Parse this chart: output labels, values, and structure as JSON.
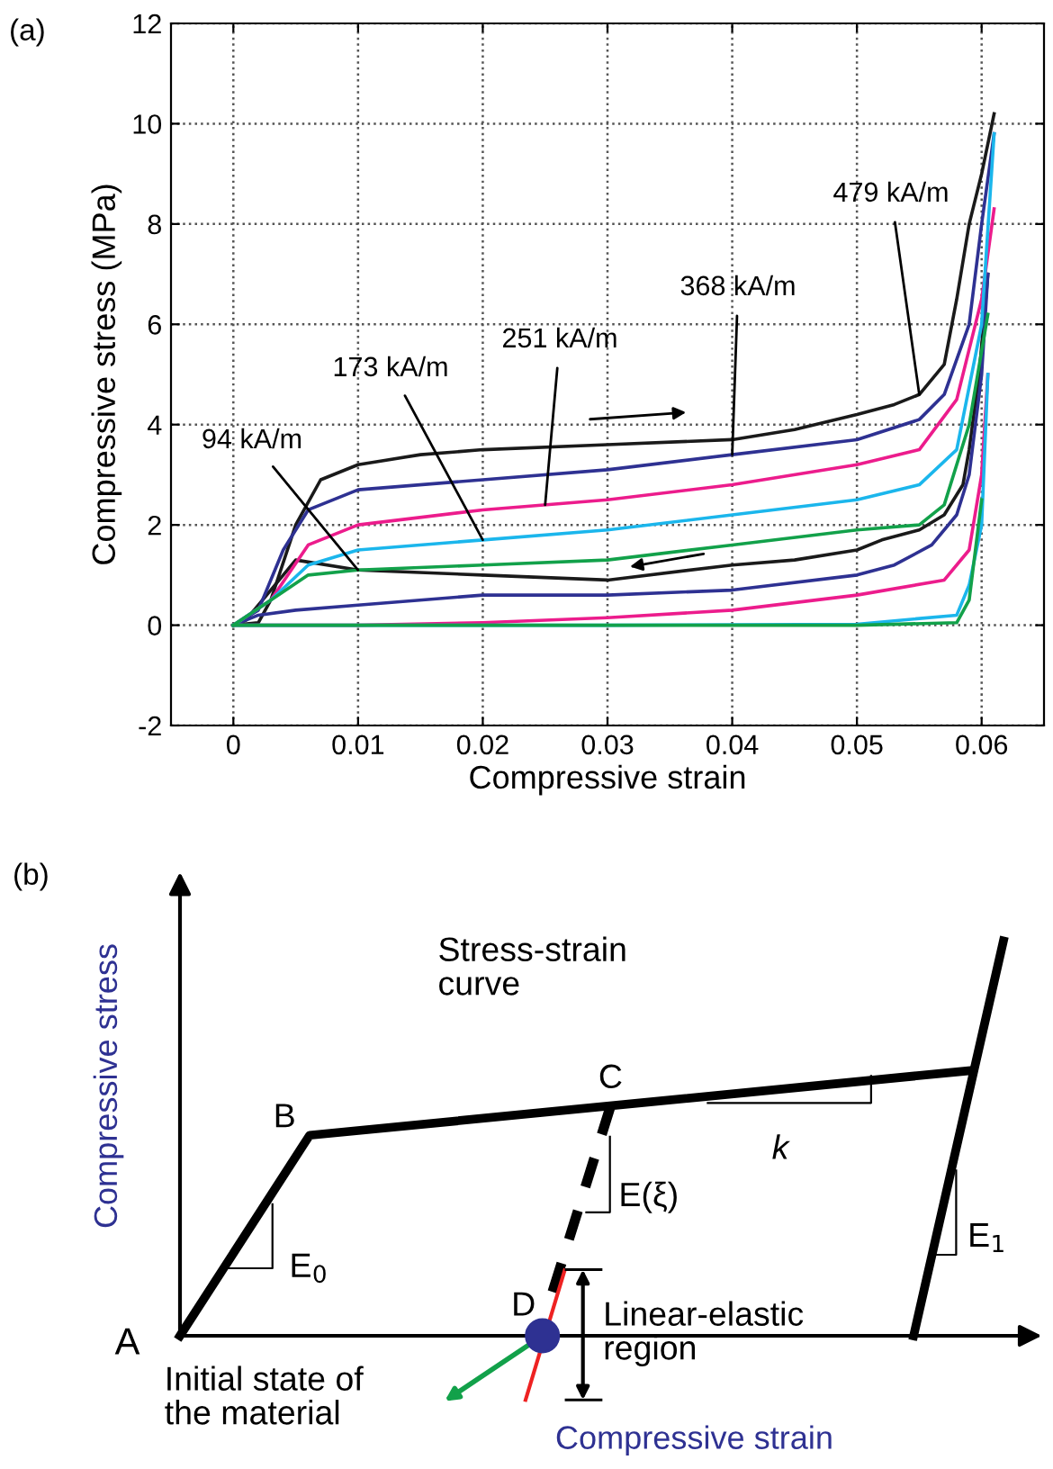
{
  "chart_data": [
    {
      "type": "line",
      "xlabel": "Compressive strain",
      "ylabel": "Compressive stress (MPa)",
      "xlim": [
        -0.005,
        0.065
      ],
      "ylim": [
        -2,
        12
      ],
      "xticks": [
        0,
        0.01,
        0.02,
        0.03,
        0.04,
        0.05,
        0.06
      ],
      "yticks": [
        -2,
        0,
        2,
        4,
        6,
        8,
        10,
        12
      ],
      "grid": true,
      "legend": false,
      "marker": "none",
      "line_style": "solid",
      "series": [
        {
          "color": "#1a1a1a",
          "x": [
            0,
            0.002,
            0.003,
            0.005,
            0.007,
            0.01,
            0.015,
            0.02,
            0.03,
            0.04,
            0.045,
            0.05,
            0.053,
            0.055,
            0.057,
            0.058,
            0.059,
            0.06,
            0.061
          ],
          "values": [
            0,
            0.05,
            0.5,
            2.0,
            2.9,
            3.2,
            3.4,
            3.5,
            3.6,
            3.7,
            3.9,
            4.2,
            4.4,
            4.6,
            5.2,
            6.5,
            8.0,
            9.0,
            10.2
          ]
        },
        {
          "color": "#1a1a1a",
          "x": [
            0,
            0.001,
            0.003,
            0.005,
            0.01,
            0.02,
            0.03,
            0.04,
            0.045,
            0.05,
            0.052,
            0.055,
            0.057,
            0.0585,
            0.059,
            0.0598,
            0.0605
          ],
          "values": [
            0,
            0.1,
            0.7,
            1.3,
            1.1,
            1.0,
            0.9,
            1.2,
            1.3,
            1.5,
            1.7,
            1.9,
            2.2,
            2.8,
            3.5,
            5,
            7
          ]
        },
        {
          "color": "#2e3192",
          "x": [
            0,
            0.002,
            0.004,
            0.006,
            0.01,
            0.02,
            0.03,
            0.04,
            0.05,
            0.055,
            0.057,
            0.059,
            0.06,
            0.061
          ],
          "values": [
            0,
            0.3,
            1.5,
            2.3,
            2.7,
            2.9,
            3.1,
            3.4,
            3.7,
            4.1,
            4.6,
            6,
            8,
            9.8
          ]
        },
        {
          "color": "#2e3192",
          "x": [
            0,
            0.002,
            0.005,
            0.01,
            0.02,
            0.03,
            0.04,
            0.05,
            0.053,
            0.056,
            0.058,
            0.059,
            0.06,
            0.0605
          ],
          "values": [
            0,
            0.2,
            0.3,
            0.4,
            0.6,
            0.6,
            0.7,
            1.0,
            1.2,
            1.6,
            2.2,
            3,
            5,
            7
          ]
        },
        {
          "color": "#ec1c8c",
          "x": [
            0,
            0.003,
            0.006,
            0.01,
            0.02,
            0.03,
            0.04,
            0.05,
            0.055,
            0.058,
            0.06,
            0.061
          ],
          "values": [
            0,
            0.5,
            1.6,
            2.0,
            2.3,
            2.5,
            2.8,
            3.2,
            3.5,
            4.5,
            6.5,
            8.3
          ]
        },
        {
          "color": "#ec1c8c",
          "x": [
            0,
            0.01,
            0.02,
            0.03,
            0.04,
            0.05,
            0.057,
            0.059,
            0.06,
            0.0605
          ],
          "values": [
            0,
            0,
            0.05,
            0.15,
            0.3,
            0.6,
            0.9,
            1.5,
            3,
            5
          ]
        },
        {
          "color": "#1bb6ec",
          "x": [
            0,
            0.003,
            0.006,
            0.01,
            0.02,
            0.03,
            0.04,
            0.05,
            0.055,
            0.058,
            0.06,
            0.061
          ],
          "values": [
            0,
            0.5,
            1.2,
            1.5,
            1.7,
            1.9,
            2.2,
            2.5,
            2.8,
            3.5,
            6,
            9.8
          ]
        },
        {
          "color": "#1bb6ec",
          "x": [
            0,
            0.03,
            0.05,
            0.058,
            0.059,
            0.06,
            0.0605
          ],
          "values": [
            0,
            0,
            0.02,
            0.2,
            0.8,
            2,
            5
          ]
        },
        {
          "color": "#12a14a",
          "x": [
            0,
            0.003,
            0.006,
            0.01,
            0.02,
            0.03,
            0.04,
            0.05,
            0.055,
            0.057,
            0.059,
            0.0605
          ],
          "values": [
            0,
            0.5,
            1.0,
            1.1,
            1.2,
            1.3,
            1.6,
            1.9,
            2.0,
            2.4,
            4,
            6.2
          ]
        },
        {
          "color": "#12a14a",
          "x": [
            0,
            0.03,
            0.05,
            0.058,
            0.059,
            0.06
          ],
          "values": [
            0,
            0,
            0,
            0.05,
            0.5,
            2.5
          ]
        }
      ],
      "annotations": [
        "(a)",
        {
          "text": "94 kA/m",
          "x": 0.01,
          "y": 1.1
        },
        {
          "text": "173 kA/m",
          "x": 0.02,
          "y": 1.7
        },
        {
          "text": "251 kA/m",
          "x": 0.025,
          "y": 2.4
        },
        {
          "text": "368 kA/m",
          "x": 0.04,
          "y": 3.4
        },
        {
          "text": "479 kA/m",
          "x": 0.055,
          "y": 4.6
        }
      ]
    },
    {
      "type": "other",
      "xlabel": "Compressive strain",
      "ylabel": "Compressive stress",
      "annotations": [
        "(b)",
        "Stress-strain\ncurve",
        "A",
        "B",
        "C",
        "D",
        "k",
        "E(ξ)",
        "E$_{0}$",
        "E$_{1}$",
        "Linear-elastic\nregion",
        "Initial state of\nthe material"
      ]
    }
  ]
}
